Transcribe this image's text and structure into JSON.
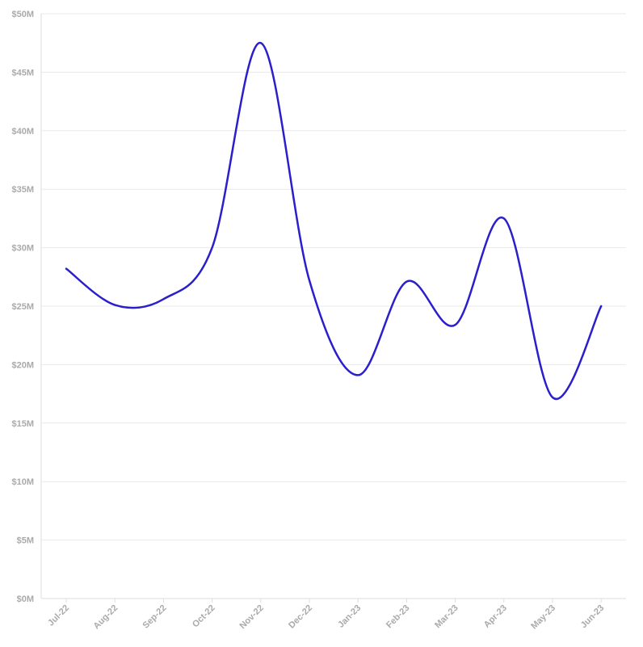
{
  "chart_data": {
    "type": "line",
    "title": "",
    "xlabel": "",
    "ylabel": "",
    "categories": [
      "Jul-22",
      "Aug-22",
      "Sep-22",
      "Oct-22",
      "Nov-22",
      "Dec-22",
      "Jan-23",
      "Feb-23",
      "Mar-23",
      "Apr-23",
      "May-23",
      "Jun-23"
    ],
    "series": [
      {
        "values": [
          28.2,
          25.1,
          25.6,
          30.0,
          47.5,
          27.2,
          19.1,
          27.1,
          23.4,
          32.5,
          17.2,
          25.0
        ],
        "color": "#2b1fcc"
      }
    ],
    "ylim": [
      0,
      50
    ],
    "yticks": [
      0,
      5,
      10,
      15,
      20,
      25,
      30,
      35,
      40,
      45,
      50
    ],
    "ytick_labels": [
      "$0M",
      "$5M",
      "$10M",
      "$15M",
      "$20M",
      "$25M",
      "$30M",
      "$35M",
      "$40M",
      "$45M",
      "$50M"
    ],
    "curve": "smooth",
    "grid": true,
    "legend": "none"
  }
}
